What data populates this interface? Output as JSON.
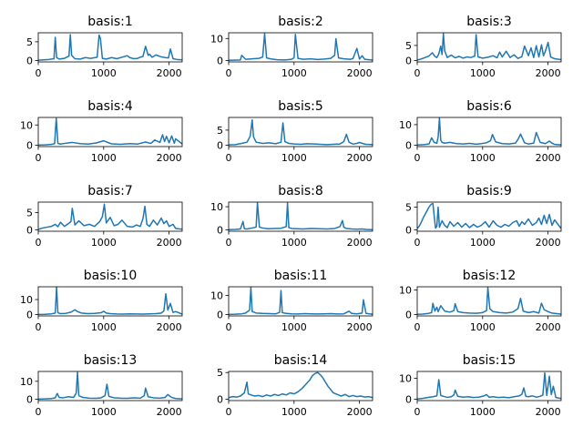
{
  "figure": {
    "title": ""
  },
  "style": {
    "line_color": "#1f77b4",
    "axes_color": "#000000",
    "background": "#ffffff"
  },
  "chart_data": [
    {
      "type": "line",
      "title": "basis:1",
      "xlim": [
        0,
        2200
      ],
      "ylim": [
        -0.35,
        7.4
      ],
      "xticks": [
        0,
        1000,
        2000
      ],
      "yticks": [
        0,
        5
      ],
      "x": [
        0,
        80,
        160,
        240,
        260,
        280,
        320,
        400,
        470,
        490,
        510,
        560,
        640,
        720,
        800,
        900,
        930,
        950,
        980,
        1040,
        1120,
        1200,
        1300,
        1360,
        1400,
        1460,
        1520,
        1560,
        1600,
        1640,
        1680,
        1700,
        1740,
        1800,
        1880,
        1940,
        1990,
        2020,
        2060,
        2120,
        2200
      ],
      "y": [
        0.1,
        0.2,
        0.3,
        0.5,
        6.2,
        0.8,
        0.4,
        0.6,
        1.2,
        6.9,
        1.4,
        0.5,
        0.4,
        0.8,
        0.6,
        0.9,
        6.8,
        5.9,
        0.6,
        0.4,
        0.8,
        0.5,
        1.0,
        1.3,
        0.8,
        0.5,
        0.6,
        0.9,
        1.1,
        3.8,
        1.4,
        1.7,
        0.9,
        1.5,
        1.0,
        0.8,
        0.7,
        3.1,
        0.5,
        0.3,
        0.2
      ]
    },
    {
      "type": "line",
      "title": "basis:2",
      "xlim": [
        0,
        2200
      ],
      "ylim": [
        -0.6,
        12.6
      ],
      "xticks": [
        0,
        1000,
        2000
      ],
      "yticks": [
        0,
        10
      ],
      "x": [
        0,
        100,
        180,
        200,
        260,
        360,
        460,
        520,
        550,
        580,
        640,
        740,
        860,
        960,
        1000,
        1020,
        1060,
        1140,
        1260,
        1360,
        1460,
        1560,
        1620,
        1640,
        1680,
        1760,
        1860,
        1900,
        1960,
        2000,
        2040,
        2080,
        2200
      ],
      "y": [
        0.1,
        0.2,
        0.3,
        2.4,
        0.6,
        0.8,
        1.0,
        1.6,
        12.2,
        1.2,
        0.8,
        0.4,
        0.3,
        0.6,
        1.2,
        11.9,
        1.0,
        0.6,
        0.8,
        0.5,
        0.7,
        1.0,
        2.4,
        9.9,
        1.2,
        0.8,
        0.6,
        0.9,
        5.5,
        0.7,
        2.2,
        0.6,
        0.2
      ]
    },
    {
      "type": "line",
      "title": "basis:3",
      "xlim": [
        0,
        2200
      ],
      "ylim": [
        -0.45,
        9.2
      ],
      "xticks": [
        0,
        1000,
        2000
      ],
      "yticks": [
        0,
        5
      ],
      "x": [
        0,
        60,
        120,
        180,
        230,
        270,
        300,
        330,
        360,
        380,
        400,
        420,
        460,
        520,
        580,
        640,
        700,
        760,
        820,
        880,
        900,
        930,
        1000,
        1080,
        1160,
        1220,
        1260,
        1300,
        1360,
        1420,
        1480,
        1540,
        1600,
        1640,
        1700,
        1740,
        1780,
        1820,
        1860,
        1900,
        1930,
        1960,
        2000,
        2040,
        2100,
        2200
      ],
      "y": [
        0.2,
        0.5,
        1.0,
        1.5,
        2.6,
        1.4,
        1.0,
        2.2,
        4.8,
        2.0,
        8.9,
        3.2,
        1.0,
        1.8,
        0.9,
        1.4,
        0.8,
        1.2,
        1.0,
        1.5,
        8.6,
        1.2,
        0.8,
        1.1,
        1.6,
        0.9,
        2.8,
        1.2,
        3.1,
        1.0,
        1.9,
        0.7,
        1.3,
        4.8,
        1.6,
        4.2,
        1.0,
        4.9,
        1.2,
        5.2,
        1.6,
        3.1,
        6.0,
        1.2,
        0.6,
        0.3
      ]
    },
    {
      "type": "line",
      "title": "basis:4",
      "xlim": [
        0,
        2200
      ],
      "ylim": [
        -0.65,
        13.7
      ],
      "xticks": [
        0,
        1000,
        2000
      ],
      "yticks": [
        0,
        10
      ],
      "x": [
        0,
        100,
        200,
        250,
        275,
        300,
        340,
        420,
        520,
        640,
        760,
        880,
        1000,
        1120,
        1260,
        1400,
        1520,
        1640,
        1720,
        1780,
        1860,
        1900,
        1930,
        1960,
        2000,
        2040,
        2080,
        2100,
        2200
      ],
      "y": [
        0.1,
        0.2,
        0.4,
        0.8,
        13.2,
        0.9,
        0.6,
        1.0,
        1.4,
        0.8,
        0.6,
        1.1,
        2.2,
        0.7,
        0.5,
        0.8,
        0.6,
        1.6,
        0.9,
        2.6,
        1.4,
        5.2,
        1.8,
        4.4,
        1.2,
        4.6,
        1.0,
        3.2,
        0.6
      ]
    },
    {
      "type": "line",
      "title": "basis:5",
      "xlim": [
        0,
        2200
      ],
      "ylim": [
        -0.45,
        9.2
      ],
      "xticks": [
        0,
        1000,
        2000
      ],
      "yticks": [
        0,
        5
      ],
      "x": [
        0,
        100,
        200,
        280,
        330,
        360,
        380,
        420,
        520,
        620,
        720,
        800,
        830,
        860,
        920,
        1000,
        1100,
        1200,
        1300,
        1400,
        1500,
        1600,
        1700,
        1760,
        1800,
        1840,
        1900,
        1960,
        2000,
        2060,
        2100,
        2200
      ],
      "y": [
        0.1,
        0.2,
        0.6,
        1.0,
        3.0,
        8.4,
        2.8,
        1.0,
        0.6,
        0.8,
        0.5,
        1.0,
        7.4,
        1.2,
        0.6,
        0.4,
        0.3,
        0.5,
        0.4,
        0.3,
        0.2,
        0.3,
        0.4,
        1.2,
        3.6,
        1.0,
        0.4,
        0.6,
        0.9,
        0.5,
        0.3,
        0.2
      ]
    },
    {
      "type": "line",
      "title": "basis:6",
      "xlim": [
        0,
        2200
      ],
      "ylim": [
        -0.65,
        13.5
      ],
      "xticks": [
        0,
        1000,
        2000
      ],
      "yticks": [
        0,
        10
      ],
      "x": [
        0,
        100,
        180,
        220,
        260,
        300,
        320,
        340,
        360,
        380,
        420,
        500,
        600,
        700,
        800,
        900,
        980,
        1060,
        1120,
        1150,
        1200,
        1300,
        1400,
        1500,
        1540,
        1580,
        1640,
        1700,
        1780,
        1820,
        1880,
        1960,
        2020,
        2060,
        2100,
        2200
      ],
      "y": [
        0.1,
        0.3,
        0.6,
        3.6,
        1.4,
        1.0,
        4.0,
        13.2,
        2.4,
        1.4,
        1.0,
        1.4,
        0.8,
        0.6,
        0.9,
        0.5,
        0.8,
        1.2,
        2.2,
        5.2,
        1.6,
        0.8,
        0.6,
        1.0,
        2.8,
        5.4,
        1.2,
        0.6,
        1.0,
        6.2,
        1.4,
        0.8,
        2.0,
        1.0,
        0.4,
        0.2
      ]
    },
    {
      "type": "line",
      "title": "basis:7",
      "xlim": [
        0,
        2200
      ],
      "ylim": [
        -0.4,
        8.0
      ],
      "xticks": [
        0,
        1000,
        2000
      ],
      "yticks": [
        0,
        5
      ],
      "x": [
        0,
        60,
        140,
        200,
        260,
        300,
        340,
        400,
        460,
        500,
        520,
        560,
        620,
        700,
        780,
        860,
        940,
        980,
        1010,
        1040,
        1100,
        1160,
        1220,
        1280,
        1360,
        1440,
        1500,
        1560,
        1600,
        1630,
        1660,
        1700,
        1760,
        1820,
        1880,
        1920,
        1960,
        2000,
        2060,
        2100,
        2200
      ],
      "y": [
        0.1,
        0.5,
        0.8,
        1.0,
        1.6,
        0.9,
        2.2,
        1.0,
        1.8,
        2.4,
        6.2,
        1.4,
        2.6,
        1.2,
        1.6,
        1.0,
        2.4,
        3.8,
        7.4,
        2.0,
        3.6,
        1.2,
        1.6,
        2.8,
        1.0,
        0.8,
        1.4,
        1.0,
        3.2,
        6.8,
        1.6,
        1.0,
        2.8,
        1.4,
        3.4,
        1.8,
        2.6,
        1.0,
        1.6,
        0.4,
        0.2
      ]
    },
    {
      "type": "line",
      "title": "basis:8",
      "xlim": [
        0,
        2200
      ],
      "ylim": [
        -0.6,
        12.0
      ],
      "xticks": [
        0,
        1000,
        2000
      ],
      "yticks": [
        0,
        10
      ],
      "x": [
        0,
        100,
        180,
        220,
        240,
        280,
        360,
        420,
        440,
        470,
        520,
        600,
        700,
        800,
        880,
        900,
        920,
        960,
        1040,
        1140,
        1260,
        1380,
        1500,
        1620,
        1700,
        1740,
        1760,
        1800,
        1880,
        1960,
        2040,
        2100,
        2200
      ],
      "y": [
        0.1,
        0.2,
        0.4,
        3.6,
        0.5,
        0.4,
        0.8,
        1.2,
        11.8,
        1.2,
        0.8,
        0.5,
        0.6,
        0.7,
        1.4,
        11.6,
        1.0,
        0.6,
        0.5,
        0.4,
        0.6,
        0.5,
        0.4,
        0.6,
        1.4,
        4.0,
        1.2,
        0.6,
        0.4,
        0.3,
        0.4,
        0.2,
        0.1
      ]
    },
    {
      "type": "line",
      "title": "basis:9",
      "xlim": [
        0,
        2200
      ],
      "ylim": [
        -0.3,
        6.1
      ],
      "xticks": [
        0,
        1000,
        2000
      ],
      "yticks": [
        0,
        5
      ],
      "x": [
        0,
        30,
        60,
        90,
        120,
        150,
        180,
        210,
        240,
        260,
        280,
        300,
        320,
        340,
        380,
        420,
        460,
        500,
        560,
        620,
        680,
        740,
        800,
        860,
        920,
        980,
        1040,
        1100,
        1160,
        1220,
        1280,
        1340,
        1400,
        1460,
        1520,
        1560,
        1600,
        1640,
        1700,
        1760,
        1820,
        1860,
        1900,
        1940,
        1980,
        2020,
        2060,
        2100,
        2200
      ],
      "y": [
        0.3,
        0.8,
        1.6,
        2.6,
        3.4,
        4.2,
        5.0,
        5.6,
        5.8,
        3.0,
        0.4,
        0.8,
        5.0,
        0.6,
        2.0,
        1.0,
        0.5,
        1.8,
        0.8,
        1.6,
        0.6,
        1.4,
        0.5,
        1.2,
        0.6,
        1.0,
        1.8,
        0.6,
        2.0,
        1.0,
        0.6,
        1.2,
        0.8,
        1.6,
        2.0,
        0.8,
        1.8,
        1.2,
        2.4,
        1.0,
        1.6,
        2.6,
        1.2,
        3.2,
        1.4,
        3.4,
        1.0,
        2.2,
        0.3
      ]
    },
    {
      "type": "line",
      "title": "basis:10",
      "xlim": [
        0,
        2200
      ],
      "ylim": [
        -0.9,
        18.5
      ],
      "xticks": [
        0,
        1000,
        2000
      ],
      "yticks": [
        0,
        10
      ],
      "x": [
        0,
        100,
        200,
        260,
        280,
        300,
        340,
        420,
        500,
        560,
        600,
        660,
        760,
        860,
        960,
        1000,
        1040,
        1100,
        1200,
        1300,
        1400,
        1500,
        1600,
        1700,
        1800,
        1880,
        1920,
        1950,
        1980,
        2020,
        2060,
        2100,
        2200
      ],
      "y": [
        0.1,
        0.2,
        0.5,
        1.0,
        18.2,
        1.2,
        0.6,
        0.8,
        1.6,
        3.2,
        2.0,
        1.0,
        0.6,
        0.8,
        1.2,
        2.2,
        1.0,
        0.6,
        0.4,
        0.3,
        0.5,
        0.4,
        0.3,
        0.5,
        0.6,
        1.0,
        2.4,
        13.8,
        3.0,
        7.4,
        1.4,
        2.0,
        0.3
      ]
    },
    {
      "type": "line",
      "title": "basis:11",
      "xlim": [
        0,
        2200
      ],
      "ylim": [
        -0.7,
        14.6
      ],
      "xticks": [
        0,
        1000,
        2000
      ],
      "yticks": [
        0,
        10
      ],
      "x": [
        0,
        100,
        200,
        260,
        320,
        340,
        360,
        420,
        520,
        620,
        720,
        780,
        800,
        820,
        880,
        960,
        1060,
        1160,
        1260,
        1360,
        1460,
        1560,
        1660,
        1760,
        1840,
        1880,
        1960,
        2040,
        2060,
        2100,
        2200
      ],
      "y": [
        0.1,
        0.2,
        0.4,
        0.8,
        2.4,
        14.2,
        1.6,
        0.8,
        0.6,
        0.5,
        0.4,
        1.2,
        12.6,
        1.0,
        0.6,
        0.4,
        0.3,
        0.5,
        0.4,
        0.3,
        0.4,
        0.5,
        0.3,
        0.4,
        1.8,
        0.6,
        0.4,
        0.8,
        7.8,
        0.6,
        0.2
      ]
    },
    {
      "type": "line",
      "title": "basis:12",
      "xlim": [
        0,
        2200
      ],
      "ylim": [
        -0.55,
        11.3
      ],
      "xticks": [
        0,
        1000,
        2000
      ],
      "yticks": [
        0,
        10
      ],
      "x": [
        0,
        80,
        160,
        220,
        240,
        270,
        300,
        320,
        360,
        420,
        500,
        560,
        580,
        620,
        700,
        800,
        900,
        1000,
        1060,
        1080,
        1110,
        1160,
        1260,
        1360,
        1460,
        1540,
        1580,
        1620,
        1700,
        1780,
        1860,
        1900,
        1940,
        2000,
        2060,
        2120,
        2200
      ],
      "y": [
        0.1,
        0.2,
        0.4,
        0.8,
        4.6,
        1.4,
        3.0,
        1.2,
        3.6,
        1.4,
        1.0,
        1.6,
        4.4,
        1.2,
        0.8,
        0.6,
        0.5,
        0.8,
        1.6,
        11.0,
        2.4,
        1.2,
        0.8,
        0.6,
        1.0,
        2.4,
        6.6,
        1.4,
        0.8,
        1.2,
        0.6,
        4.6,
        2.0,
        1.2,
        0.6,
        0.4,
        0.2
      ]
    },
    {
      "type": "line",
      "title": "basis:13",
      "xlim": [
        0,
        2200
      ],
      "ylim": [
        -0.75,
        15.5
      ],
      "xticks": [
        0,
        1000,
        2000
      ],
      "yticks": [
        0,
        10
      ],
      "x": [
        0,
        100,
        200,
        260,
        290,
        320,
        380,
        460,
        540,
        580,
        600,
        620,
        680,
        780,
        880,
        960,
        1020,
        1050,
        1080,
        1160,
        1260,
        1360,
        1460,
        1560,
        1620,
        1640,
        1680,
        1760,
        1860,
        1940,
        1980,
        2040,
        2100,
        2200
      ],
      "y": [
        0.1,
        0.2,
        0.4,
        0.8,
        3.2,
        1.0,
        0.8,
        1.4,
        1.0,
        3.4,
        15.0,
        2.0,
        1.0,
        0.6,
        0.5,
        0.8,
        2.0,
        8.4,
        1.6,
        0.8,
        0.6,
        0.5,
        0.8,
        0.6,
        2.0,
        6.2,
        1.4,
        0.8,
        0.6,
        1.0,
        2.6,
        1.0,
        0.4,
        0.2
      ]
    },
    {
      "type": "line",
      "title": "basis:14",
      "xlim": [
        0,
        2200
      ],
      "ylim": [
        -0.25,
        5.2
      ],
      "xticks": [
        0,
        1000,
        2000
      ],
      "yticks": [
        0,
        5
      ],
      "x": [
        0,
        60,
        120,
        180,
        240,
        280,
        300,
        340,
        400,
        460,
        520,
        580,
        640,
        700,
        760,
        820,
        880,
        940,
        1000,
        1060,
        1120,
        1180,
        1240,
        1280,
        1320,
        1360,
        1400,
        1440,
        1480,
        1520,
        1560,
        1600,
        1640,
        1680,
        1720,
        1780,
        1840,
        1900,
        1960,
        2020,
        2080,
        2140,
        2200
      ],
      "y": [
        0.3,
        0.5,
        0.4,
        0.6,
        1.2,
        3.2,
        1.0,
        0.8,
        0.6,
        0.7,
        0.5,
        0.8,
        0.6,
        0.9,
        0.7,
        1.0,
        0.8,
        1.2,
        1.0,
        1.4,
        2.0,
        2.8,
        3.6,
        4.4,
        4.8,
        5.0,
        4.6,
        4.0,
        3.2,
        2.4,
        1.8,
        1.2,
        1.0,
        0.8,
        0.6,
        0.9,
        0.5,
        0.7,
        0.5,
        0.6,
        0.4,
        0.5,
        0.3
      ]
    },
    {
      "type": "line",
      "title": "basis:15",
      "xlim": [
        0,
        2200
      ],
      "ylim": [
        -0.65,
        13.3
      ],
      "xticks": [
        0,
        1000,
        2000
      ],
      "yticks": [
        0,
        10
      ],
      "x": [
        0,
        80,
        160,
        240,
        300,
        330,
        360,
        400,
        460,
        520,
        560,
        580,
        620,
        700,
        780,
        860,
        940,
        1020,
        1060,
        1100,
        1160,
        1240,
        1320,
        1400,
        1480,
        1560,
        1600,
        1630,
        1660,
        1700,
        1760,
        1820,
        1880,
        1920,
        1950,
        1980,
        2020,
        2050,
        2080,
        2120,
        2200
      ],
      "y": [
        0.1,
        0.4,
        0.8,
        1.2,
        1.6,
        9.4,
        1.8,
        1.4,
        0.9,
        1.2,
        2.0,
        4.4,
        1.4,
        1.0,
        1.2,
        0.8,
        1.0,
        1.6,
        2.2,
        1.0,
        1.2,
        0.8,
        1.0,
        0.7,
        1.2,
        1.6,
        2.4,
        5.4,
        1.4,
        1.2,
        1.6,
        1.0,
        1.4,
        2.0,
        12.6,
        1.8,
        11.0,
        2.2,
        6.2,
        0.8,
        0.3
      ]
    }
  ]
}
